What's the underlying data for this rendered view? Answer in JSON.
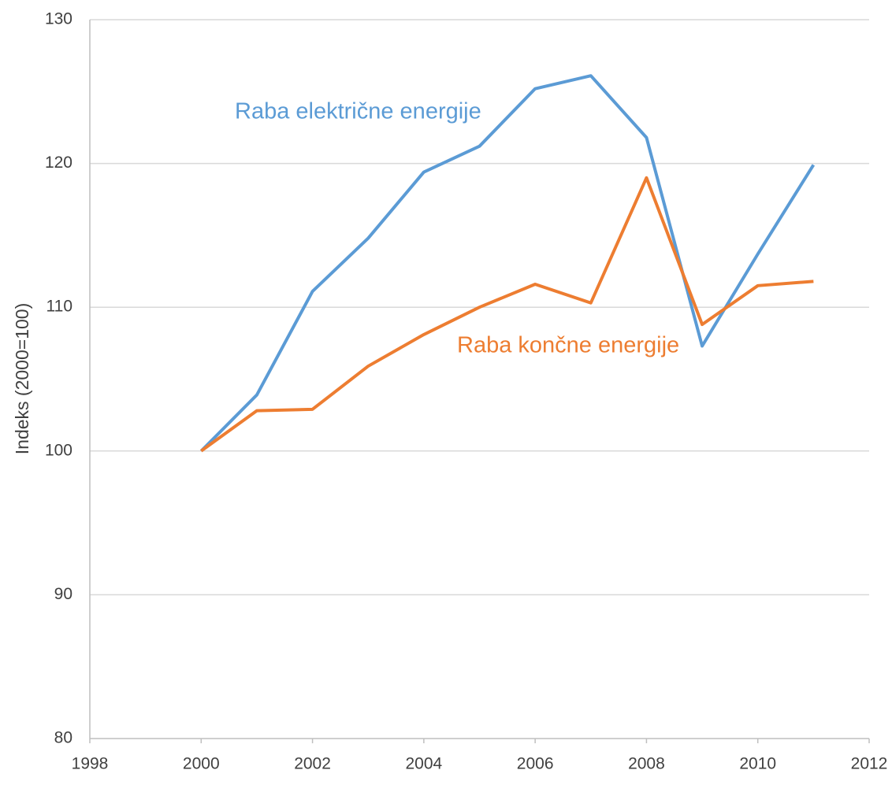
{
  "chart_data": {
    "type": "line",
    "y_label": "Indeks (2000=100)",
    "x": [
      2000,
      2001,
      2002,
      2003,
      2004,
      2005,
      2006,
      2007,
      2008,
      2009,
      2010,
      2011
    ],
    "series": [
      {
        "name": "Raba električne energije",
        "color": "#5b9bd5",
        "values": [
          100,
          103.9,
          111.1,
          114.8,
          119.4,
          121.2,
          125.2,
          126.1,
          121.8,
          107.3,
          113.7,
          119.9
        ]
      },
      {
        "name": "Raba končne energije",
        "color": "#ed7d31",
        "values": [
          100,
          102.8,
          102.9,
          105.9,
          108.1,
          110.0,
          111.6,
          110.3,
          119.0,
          108.8,
          111.5,
          111.8
        ]
      }
    ],
    "xlim": [
      1998,
      2012
    ],
    "xticks": [
      1998,
      2000,
      2002,
      2004,
      2006,
      2008,
      2010,
      2012
    ],
    "ylim": [
      80,
      130
    ],
    "yticks": [
      80,
      90,
      100,
      110,
      120,
      130
    ],
    "grid": true
  }
}
